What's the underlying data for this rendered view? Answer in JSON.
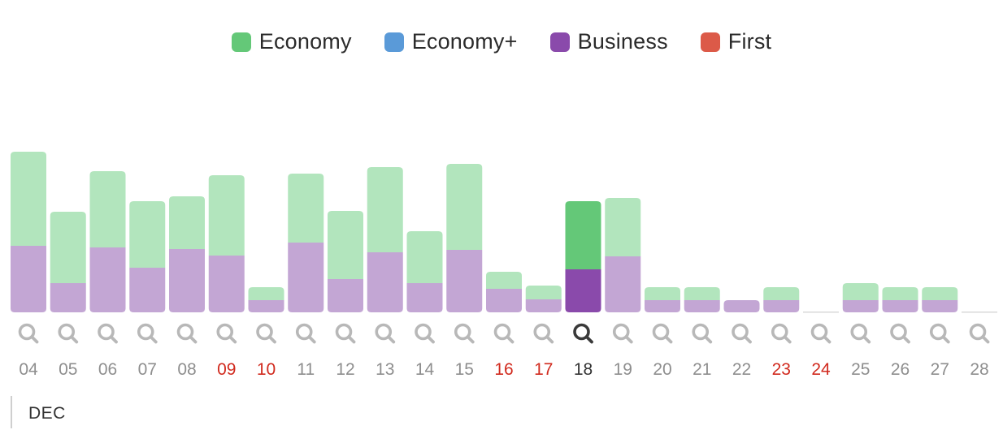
{
  "legend": [
    {
      "label": "Economy",
      "color": "#64c878"
    },
    {
      "label": "Economy+",
      "color": "#5a9ad8"
    },
    {
      "label": "Business",
      "color": "#8a4aab"
    },
    {
      "label": "First",
      "color": "#dc5a48"
    }
  ],
  "month": "DEC",
  "chart_data": {
    "type": "bar",
    "stacked": true,
    "categories": [
      "04",
      "05",
      "06",
      "07",
      "08",
      "09",
      "10",
      "11",
      "12",
      "13",
      "14",
      "15",
      "16",
      "17",
      "18",
      "19",
      "20",
      "21",
      "22",
      "23",
      "24",
      "25",
      "26",
      "27",
      "28"
    ],
    "weekend": [
      "09",
      "10",
      "16",
      "17",
      "23",
      "24"
    ],
    "selected": "18",
    "series": [
      {
        "name": "Business",
        "color": "#8a4aab",
        "light_color": "#c3a6d4",
        "values": [
          82,
          36,
          80,
          55,
          78,
          70,
          15,
          86,
          41,
          74,
          36,
          77,
          29,
          16,
          53,
          69,
          15,
          15,
          15,
          15,
          0,
          15,
          15,
          15,
          0
        ]
      },
      {
        "name": "Economy",
        "color": "#64c878",
        "light_color": "#b2e5bd",
        "values": [
          116,
          88,
          94,
          82,
          65,
          99,
          16,
          85,
          84,
          105,
          64,
          106,
          21,
          17,
          84,
          72,
          16,
          16,
          0,
          16,
          0,
          21,
          16,
          16,
          0
        ]
      }
    ]
  }
}
